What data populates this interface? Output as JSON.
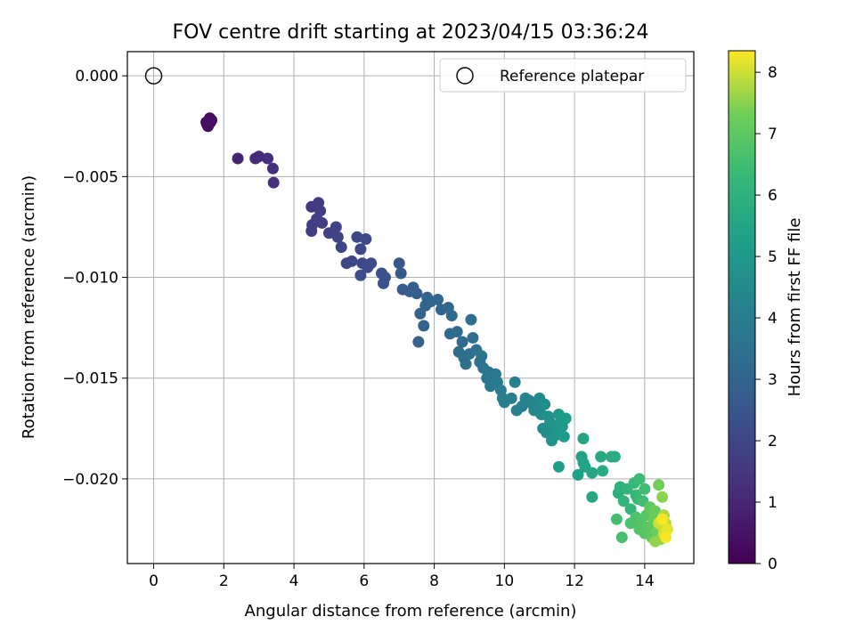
{
  "chart_data": {
    "type": "scatter",
    "title": "FOV centre drift starting at 2023/04/15 03:36:24",
    "xlabel": "Angular distance from reference (arcmin)",
    "ylabel": "Rotation from reference (arcmin)",
    "xlim": [
      -0.75,
      15.4
    ],
    "ylim": [
      -0.0242,
      0.0012
    ],
    "xticks": [
      0,
      2,
      4,
      6,
      8,
      10,
      12,
      14
    ],
    "xtick_labels": [
      "0",
      "2",
      "4",
      "6",
      "8",
      "10",
      "12",
      "14"
    ],
    "yticks": [
      0.0,
      -0.005,
      -0.01,
      -0.015,
      -0.02
    ],
    "ytick_labels": [
      "0.000",
      "−0.005",
      "−0.010",
      "−0.015",
      "−0.020"
    ],
    "grid": true,
    "colormap": "viridis",
    "colorbar": {
      "label": "Hours from first FF file",
      "range": [
        0,
        8.35
      ],
      "ticks": [
        0,
        1,
        2,
        3,
        4,
        5,
        6,
        7,
        8
      ],
      "tick_labels": [
        "0",
        "1",
        "2",
        "3",
        "4",
        "5",
        "6",
        "7",
        "8"
      ]
    },
    "legend": {
      "placement": "top-right",
      "entries": [
        "Reference platepar"
      ]
    },
    "reference_point": {
      "x": 0,
      "y": 0,
      "label": "Reference platepar"
    },
    "points": [
      {
        "x": 1.5,
        "y": -0.0023,
        "c": 0.2
      },
      {
        "x": 1.6,
        "y": -0.0021,
        "c": 0.25
      },
      {
        "x": 1.55,
        "y": -0.0025,
        "c": 0.3
      },
      {
        "x": 1.65,
        "y": -0.0022,
        "c": 0.3
      },
      {
        "x": 1.52,
        "y": -0.0024,
        "c": 0.35
      },
      {
        "x": 1.62,
        "y": -0.0023,
        "c": 0.35
      },
      {
        "x": 1.58,
        "y": -0.0022,
        "c": 0.4
      },
      {
        "x": 2.4,
        "y": -0.0041,
        "c": 0.9
      },
      {
        "x": 2.9,
        "y": -0.0041,
        "c": 1.1
      },
      {
        "x": 3.0,
        "y": -0.004,
        "c": 1.15
      },
      {
        "x": 3.25,
        "y": -0.0041,
        "c": 1.2
      },
      {
        "x": 3.4,
        "y": -0.0046,
        "c": 1.25
      },
      {
        "x": 3.42,
        "y": -0.0053,
        "c": 1.3
      },
      {
        "x": 4.5,
        "y": -0.0065,
        "c": 1.6
      },
      {
        "x": 4.7,
        "y": -0.0063,
        "c": 1.65
      },
      {
        "x": 4.75,
        "y": -0.0067,
        "c": 1.7
      },
      {
        "x": 4.52,
        "y": -0.0074,
        "c": 1.7
      },
      {
        "x": 4.5,
        "y": -0.0077,
        "c": 1.75
      },
      {
        "x": 4.65,
        "y": -0.0071,
        "c": 1.75
      },
      {
        "x": 4.8,
        "y": -0.0073,
        "c": 1.8
      },
      {
        "x": 5.0,
        "y": -0.0078,
        "c": 1.85
      },
      {
        "x": 5.2,
        "y": -0.0075,
        "c": 1.9
      },
      {
        "x": 5.25,
        "y": -0.008,
        "c": 1.9
      },
      {
        "x": 5.35,
        "y": -0.0085,
        "c": 1.95
      },
      {
        "x": 5.5,
        "y": -0.0093,
        "c": 2.0
      },
      {
        "x": 5.65,
        "y": -0.0092,
        "c": 2.0
      },
      {
        "x": 5.8,
        "y": -0.008,
        "c": 2.05
      },
      {
        "x": 5.9,
        "y": -0.0086,
        "c": 2.05
      },
      {
        "x": 5.95,
        "y": -0.0093,
        "c": 2.1
      },
      {
        "x": 6.05,
        "y": -0.0081,
        "c": 2.1
      },
      {
        "x": 6.1,
        "y": -0.0095,
        "c": 2.15
      },
      {
        "x": 6.2,
        "y": -0.0093,
        "c": 2.15
      },
      {
        "x": 5.9,
        "y": -0.0099,
        "c": 2.2
      },
      {
        "x": 6.5,
        "y": -0.0098,
        "c": 2.3
      },
      {
        "x": 6.55,
        "y": -0.0103,
        "c": 2.35
      },
      {
        "x": 6.6,
        "y": -0.01,
        "c": 2.4
      },
      {
        "x": 7.0,
        "y": -0.0093,
        "c": 2.6
      },
      {
        "x": 7.05,
        "y": -0.0098,
        "c": 2.65
      },
      {
        "x": 7.1,
        "y": -0.0106,
        "c": 2.7
      },
      {
        "x": 7.3,
        "y": -0.0107,
        "c": 2.75
      },
      {
        "x": 7.4,
        "y": -0.0105,
        "c": 2.8
      },
      {
        "x": 7.5,
        "y": -0.0108,
        "c": 2.85
      },
      {
        "x": 7.6,
        "y": -0.0118,
        "c": 2.9
      },
      {
        "x": 7.75,
        "y": -0.0114,
        "c": 2.95
      },
      {
        "x": 7.8,
        "y": -0.011,
        "c": 3.0
      },
      {
        "x": 7.9,
        "y": -0.0112,
        "c": 3.0
      },
      {
        "x": 8.1,
        "y": -0.0111,
        "c": 3.05
      },
      {
        "x": 7.7,
        "y": -0.0124,
        "c": 3.0
      },
      {
        "x": 7.55,
        "y": -0.0132,
        "c": 2.95
      },
      {
        "x": 8.2,
        "y": -0.0116,
        "c": 3.1
      },
      {
        "x": 8.4,
        "y": -0.0115,
        "c": 3.15
      },
      {
        "x": 8.5,
        "y": -0.0119,
        "c": 3.2
      },
      {
        "x": 8.45,
        "y": -0.0128,
        "c": 3.2
      },
      {
        "x": 8.65,
        "y": -0.0127,
        "c": 3.25
      },
      {
        "x": 8.8,
        "y": -0.0132,
        "c": 3.3
      },
      {
        "x": 8.7,
        "y": -0.0137,
        "c": 3.3
      },
      {
        "x": 8.85,
        "y": -0.014,
        "c": 3.35
      },
      {
        "x": 8.9,
        "y": -0.0143,
        "c": 3.4
      },
      {
        "x": 9.0,
        "y": -0.0138,
        "c": 3.4
      },
      {
        "x": 9.05,
        "y": -0.0121,
        "c": 3.45
      },
      {
        "x": 9.1,
        "y": -0.013,
        "c": 3.45
      },
      {
        "x": 9.2,
        "y": -0.0136,
        "c": 3.5
      },
      {
        "x": 9.3,
        "y": -0.0142,
        "c": 3.55
      },
      {
        "x": 9.35,
        "y": -0.0139,
        "c": 3.6
      },
      {
        "x": 9.4,
        "y": -0.0145,
        "c": 3.6
      },
      {
        "x": 9.5,
        "y": -0.015,
        "c": 3.65
      },
      {
        "x": 9.55,
        "y": -0.0147,
        "c": 3.7
      },
      {
        "x": 9.6,
        "y": -0.0154,
        "c": 3.75
      },
      {
        "x": 9.75,
        "y": -0.0148,
        "c": 3.8
      },
      {
        "x": 9.8,
        "y": -0.0152,
        "c": 3.85
      },
      {
        "x": 9.9,
        "y": -0.0156,
        "c": 3.9
      },
      {
        "x": 9.95,
        "y": -0.016,
        "c": 3.95
      },
      {
        "x": 10.0,
        "y": -0.0162,
        "c": 4.0
      },
      {
        "x": 10.2,
        "y": -0.016,
        "c": 4.05
      },
      {
        "x": 10.3,
        "y": -0.0152,
        "c": 4.1
      },
      {
        "x": 10.35,
        "y": -0.0166,
        "c": 4.1
      },
      {
        "x": 10.5,
        "y": -0.0164,
        "c": 4.15
      },
      {
        "x": 10.6,
        "y": -0.016,
        "c": 4.2
      },
      {
        "x": 10.7,
        "y": -0.0161,
        "c": 4.25
      },
      {
        "x": 10.8,
        "y": -0.0163,
        "c": 4.3
      },
      {
        "x": 10.85,
        "y": -0.0166,
        "c": 4.35
      },
      {
        "x": 10.95,
        "y": -0.0165,
        "c": 4.4
      },
      {
        "x": 11.0,
        "y": -0.016,
        "c": 4.45
      },
      {
        "x": 11.05,
        "y": -0.0168,
        "c": 4.5
      },
      {
        "x": 11.1,
        "y": -0.0175,
        "c": 4.55
      },
      {
        "x": 11.15,
        "y": -0.0163,
        "c": 4.6
      },
      {
        "x": 11.2,
        "y": -0.0177,
        "c": 4.65
      },
      {
        "x": 11.25,
        "y": -0.0169,
        "c": 4.7
      },
      {
        "x": 11.3,
        "y": -0.0172,
        "c": 4.75
      },
      {
        "x": 11.4,
        "y": -0.0174,
        "c": 4.8
      },
      {
        "x": 11.35,
        "y": -0.0181,
        "c": 4.85
      },
      {
        "x": 11.5,
        "y": -0.0178,
        "c": 4.9
      },
      {
        "x": 11.55,
        "y": -0.0168,
        "c": 4.95
      },
      {
        "x": 11.6,
        "y": -0.0172,
        "c": 5.0
      },
      {
        "x": 11.65,
        "y": -0.0174,
        "c": 5.05
      },
      {
        "x": 11.7,
        "y": -0.0179,
        "c": 5.1
      },
      {
        "x": 11.75,
        "y": -0.017,
        "c": 5.15
      },
      {
        "x": 11.55,
        "y": -0.0194,
        "c": 5.2
      },
      {
        "x": 12.1,
        "y": -0.0198,
        "c": 5.3
      },
      {
        "x": 12.2,
        "y": -0.0189,
        "c": 5.35
      },
      {
        "x": 12.25,
        "y": -0.0192,
        "c": 5.4
      },
      {
        "x": 12.3,
        "y": -0.0194,
        "c": 5.45
      },
      {
        "x": 12.25,
        "y": -0.018,
        "c": 5.5
      },
      {
        "x": 12.5,
        "y": -0.0197,
        "c": 5.55
      },
      {
        "x": 12.5,
        "y": -0.0209,
        "c": 5.6
      },
      {
        "x": 12.75,
        "y": -0.0189,
        "c": 5.7
      },
      {
        "x": 12.8,
        "y": -0.0196,
        "c": 5.75
      },
      {
        "x": 13.05,
        "y": -0.0189,
        "c": 5.8
      },
      {
        "x": 13.15,
        "y": -0.0189,
        "c": 5.85
      },
      {
        "x": 13.25,
        "y": -0.0207,
        "c": 5.9
      },
      {
        "x": 13.3,
        "y": -0.0204,
        "c": 6.0
      },
      {
        "x": 13.4,
        "y": -0.0211,
        "c": 6.1
      },
      {
        "x": 13.5,
        "y": -0.0205,
        "c": 6.15
      },
      {
        "x": 13.6,
        "y": -0.0215,
        "c": 6.2
      },
      {
        "x": 13.7,
        "y": -0.0202,
        "c": 6.25
      },
      {
        "x": 13.75,
        "y": -0.0208,
        "c": 6.3
      },
      {
        "x": 13.8,
        "y": -0.021,
        "c": 6.35
      },
      {
        "x": 13.85,
        "y": -0.02,
        "c": 6.4
      },
      {
        "x": 13.95,
        "y": -0.0211,
        "c": 6.45
      },
      {
        "x": 14.0,
        "y": -0.0205,
        "c": 6.5
      },
      {
        "x": 13.2,
        "y": -0.022,
        "c": 6.55
      },
      {
        "x": 13.35,
        "y": -0.0229,
        "c": 6.6
      },
      {
        "x": 13.6,
        "y": -0.0222,
        "c": 6.7
      },
      {
        "x": 13.75,
        "y": -0.0219,
        "c": 6.75
      },
      {
        "x": 13.85,
        "y": -0.0225,
        "c": 6.8
      },
      {
        "x": 13.9,
        "y": -0.0221,
        "c": 6.85
      },
      {
        "x": 14.0,
        "y": -0.0227,
        "c": 6.9
      },
      {
        "x": 14.05,
        "y": -0.0218,
        "c": 6.95
      },
      {
        "x": 14.1,
        "y": -0.0224,
        "c": 7.0
      },
      {
        "x": 14.15,
        "y": -0.0214,
        "c": 7.05
      },
      {
        "x": 14.2,
        "y": -0.0229,
        "c": 7.1
      },
      {
        "x": 14.25,
        "y": -0.022,
        "c": 7.15
      },
      {
        "x": 14.3,
        "y": -0.0216,
        "c": 7.2
      },
      {
        "x": 14.35,
        "y": -0.0226,
        "c": 7.25
      },
      {
        "x": 14.4,
        "y": -0.0203,
        "c": 7.3
      },
      {
        "x": 14.45,
        "y": -0.0221,
        "c": 7.4
      },
      {
        "x": 14.5,
        "y": -0.0209,
        "c": 7.5
      },
      {
        "x": 14.3,
        "y": -0.0231,
        "c": 7.55
      },
      {
        "x": 14.45,
        "y": -0.023,
        "c": 7.6
      },
      {
        "x": 14.5,
        "y": -0.0224,
        "c": 7.7
      },
      {
        "x": 14.55,
        "y": -0.0218,
        "c": 7.8
      },
      {
        "x": 14.6,
        "y": -0.0222,
        "c": 7.9
      },
      {
        "x": 14.4,
        "y": -0.0222,
        "c": 8.0
      },
      {
        "x": 14.55,
        "y": -0.0227,
        "c": 8.1
      },
      {
        "x": 14.65,
        "y": -0.0225,
        "c": 8.2
      },
      {
        "x": 14.6,
        "y": -0.0229,
        "c": 8.3
      },
      {
        "x": 14.5,
        "y": -0.022,
        "c": 8.35
      }
    ]
  }
}
